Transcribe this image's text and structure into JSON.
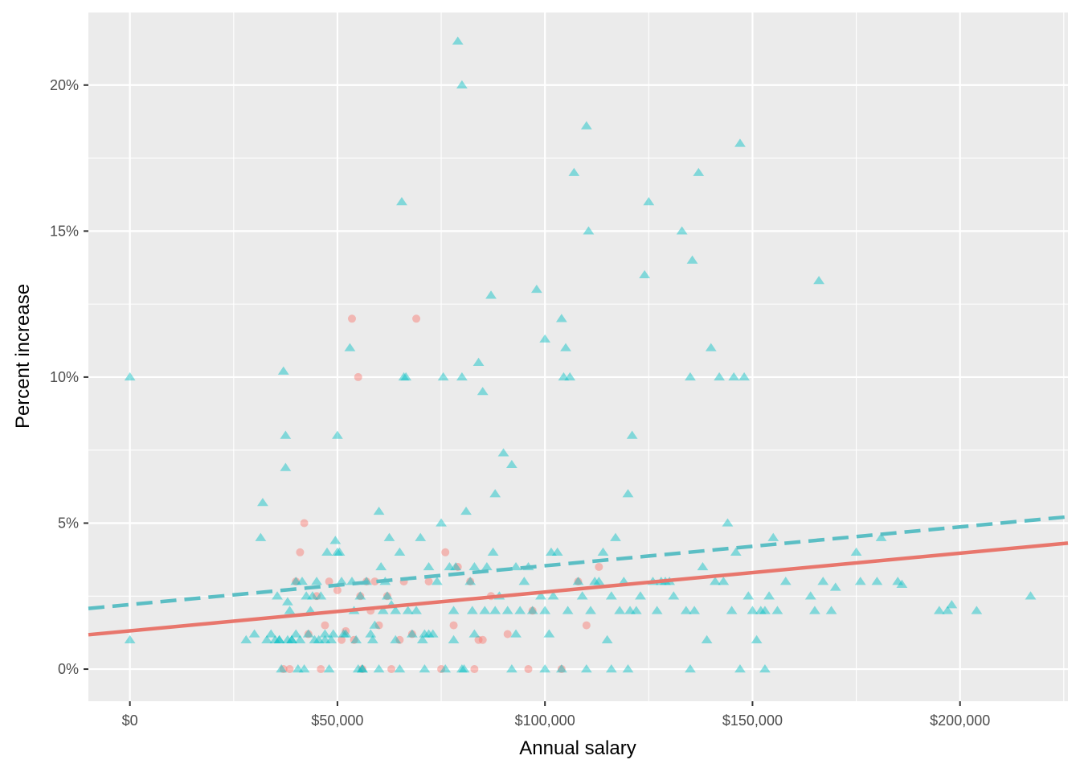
{
  "chart_data": {
    "type": "scatter",
    "title": "",
    "xlabel": "Annual salary",
    "ylabel": "Percent increase",
    "xlim": [
      -10000,
      226000
    ],
    "ylim": [
      -0.011,
      0.225
    ],
    "x_ticks": [
      0,
      50000,
      100000,
      150000,
      200000
    ],
    "x_tick_labels": [
      "$0",
      "$50,000",
      "$100,000",
      "$150,000",
      "$200,000"
    ],
    "y_ticks": [
      0,
      0.05,
      0.1,
      0.15,
      0.2
    ],
    "y_tick_labels": [
      "0%",
      "5%",
      "10%",
      "15%",
      "20%"
    ],
    "grid": true,
    "legend": "none",
    "background": "#ebebeb",
    "series": [
      {
        "marker": "circle",
        "color": "#F8766D",
        "points": [
          [
            37000,
            0
          ],
          [
            38500,
            0
          ],
          [
            40000,
            0.03
          ],
          [
            41000,
            0.04
          ],
          [
            42000,
            0.05
          ],
          [
            43000,
            0.012
          ],
          [
            45000,
            0.025
          ],
          [
            46000,
            0
          ],
          [
            47000,
            0.015
          ],
          [
            48000,
            0.03
          ],
          [
            50000,
            0.027
          ],
          [
            51000,
            0.01
          ],
          [
            52000,
            0.013
          ],
          [
            53500,
            0.12
          ],
          [
            54000,
            0.01
          ],
          [
            55000,
            0.1
          ],
          [
            55500,
            0.025
          ],
          [
            56000,
            0
          ],
          [
            57000,
            0.03
          ],
          [
            58000,
            0.02
          ],
          [
            59000,
            0.03
          ],
          [
            60000,
            0.015
          ],
          [
            62000,
            0.025
          ],
          [
            63000,
            0
          ],
          [
            65000,
            0.01
          ],
          [
            66000,
            0.03
          ],
          [
            68000,
            0.012
          ],
          [
            69000,
            0.12
          ],
          [
            72000,
            0.03
          ],
          [
            75000,
            0
          ],
          [
            76000,
            0.04
          ],
          [
            78000,
            0.015
          ],
          [
            79000,
            0.035
          ],
          [
            82000,
            0.03
          ],
          [
            83000,
            0
          ],
          [
            84000,
            0.01
          ],
          [
            85000,
            0.01
          ],
          [
            87000,
            0.025
          ],
          [
            91000,
            0.012
          ],
          [
            96000,
            0
          ],
          [
            97000,
            0.02
          ],
          [
            104000,
            0
          ],
          [
            108000,
            0.03
          ],
          [
            110000,
            0.015
          ],
          [
            113000,
            0.035
          ]
        ]
      },
      {
        "marker": "triangle",
        "color": "#00BFC4",
        "points": [
          [
            0,
            0.1
          ],
          [
            0,
            0.01
          ],
          [
            28000,
            0.01
          ],
          [
            30000,
            0.012
          ],
          [
            31500,
            0.045
          ],
          [
            32000,
            0.057
          ],
          [
            33000,
            0.01
          ],
          [
            34000,
            0.012
          ],
          [
            35000,
            0.01
          ],
          [
            35500,
            0.025
          ],
          [
            36000,
            0.01
          ],
          [
            36500,
            0
          ],
          [
            37000,
            0.102
          ],
          [
            37500,
            0.08
          ],
          [
            37500,
            0.069
          ],
          [
            38000,
            0.023
          ],
          [
            38500,
            0.02
          ],
          [
            39000,
            0.01
          ],
          [
            40000,
            0.03
          ],
          [
            40000,
            0.012
          ],
          [
            40500,
            0
          ],
          [
            41000,
            0.01
          ],
          [
            41500,
            0.03
          ],
          [
            42000,
            0
          ],
          [
            42500,
            0.025
          ],
          [
            43000,
            0.012
          ],
          [
            43500,
            0.02
          ],
          [
            44000,
            0.025
          ],
          [
            44500,
            0.01
          ],
          [
            45000,
            0.03
          ],
          [
            45500,
            0.01
          ],
          [
            46000,
            0.025
          ],
          [
            47000,
            0.012
          ],
          [
            47500,
            0.04
          ],
          [
            48000,
            0
          ],
          [
            48500,
            0.01
          ],
          [
            49000,
            0.012
          ],
          [
            49500,
            0.044
          ],
          [
            50000,
            0.04
          ],
          [
            50000,
            0.08
          ],
          [
            50500,
            0.04
          ],
          [
            51000,
            0.03
          ],
          [
            51500,
            0.012
          ],
          [
            52000,
            0.012
          ],
          [
            53000,
            0.11
          ],
          [
            53500,
            0.03
          ],
          [
            54000,
            0.02
          ],
          [
            54500,
            0.01
          ],
          [
            55000,
            0
          ],
          [
            55500,
            0.025
          ],
          [
            56000,
            0
          ],
          [
            57000,
            0.03
          ],
          [
            58000,
            0.012
          ],
          [
            58500,
            0.01
          ],
          [
            59000,
            0.015
          ],
          [
            60000,
            0.054
          ],
          [
            60500,
            0.035
          ],
          [
            61000,
            0.02
          ],
          [
            61500,
            0.03
          ],
          [
            62000,
            0.025
          ],
          [
            62500,
            0.045
          ],
          [
            63000,
            0.022
          ],
          [
            64000,
            0.01
          ],
          [
            65000,
            0.04
          ],
          [
            65500,
            0.16
          ],
          [
            66000,
            0.1
          ],
          [
            66500,
            0.1
          ],
          [
            67000,
            0.02
          ],
          [
            68000,
            0.012
          ],
          [
            69000,
            0.02
          ],
          [
            70000,
            0.045
          ],
          [
            70500,
            0.01
          ],
          [
            71000,
            0.012
          ],
          [
            72000,
            0.035
          ],
          [
            73000,
            0.012
          ],
          [
            74000,
            0.03
          ],
          [
            75000,
            0.05
          ],
          [
            75500,
            0.1
          ],
          [
            76000,
            0
          ],
          [
            77000,
            0.035
          ],
          [
            78000,
            0.01
          ],
          [
            78500,
            0.035
          ],
          [
            79000,
            0.215
          ],
          [
            80000,
            0.2
          ],
          [
            80000,
            0.1
          ],
          [
            80500,
            0
          ],
          [
            81000,
            0.054
          ],
          [
            82000,
            0.03
          ],
          [
            82500,
            0.02
          ],
          [
            83000,
            0.035
          ],
          [
            84000,
            0.105
          ],
          [
            85000,
            0.095
          ],
          [
            85500,
            0.02
          ],
          [
            86000,
            0.035
          ],
          [
            87000,
            0.128
          ],
          [
            87500,
            0.04
          ],
          [
            88000,
            0.06
          ],
          [
            89000,
            0.025
          ],
          [
            90000,
            0.074
          ],
          [
            91000,
            0.02
          ],
          [
            92000,
            0.07
          ],
          [
            93000,
            0.035
          ],
          [
            94000,
            0.02
          ],
          [
            95000,
            0.03
          ],
          [
            96000,
            0.035
          ],
          [
            97000,
            0.02
          ],
          [
            98000,
            0.13
          ],
          [
            99000,
            0.025
          ],
          [
            100000,
            0.02
          ],
          [
            100000,
            0.113
          ],
          [
            101000,
            0.012
          ],
          [
            101500,
            0.04
          ],
          [
            102000,
            0.025
          ],
          [
            103000,
            0.04
          ],
          [
            104000,
            0.12
          ],
          [
            104500,
            0.1
          ],
          [
            105000,
            0.11
          ],
          [
            105500,
            0.02
          ],
          [
            106000,
            0.1
          ],
          [
            107000,
            0.17
          ],
          [
            108000,
            0.03
          ],
          [
            109000,
            0.025
          ],
          [
            110000,
            0.186
          ],
          [
            110500,
            0.15
          ],
          [
            111000,
            0.02
          ],
          [
            112000,
            0.03
          ],
          [
            113000,
            0.03
          ],
          [
            114000,
            0.04
          ],
          [
            115000,
            0.01
          ],
          [
            116000,
            0.025
          ],
          [
            117000,
            0.045
          ],
          [
            118000,
            0.02
          ],
          [
            119000,
            0.03
          ],
          [
            120000,
            0.06
          ],
          [
            120500,
            0.02
          ],
          [
            121000,
            0.08
          ],
          [
            122000,
            0.02
          ],
          [
            123000,
            0.025
          ],
          [
            124000,
            0.135
          ],
          [
            125000,
            0.16
          ],
          [
            126000,
            0.03
          ],
          [
            127000,
            0.02
          ],
          [
            128000,
            0.03
          ],
          [
            129000,
            0.03
          ],
          [
            130000,
            0.03
          ],
          [
            131000,
            0.025
          ],
          [
            133000,
            0.15
          ],
          [
            134000,
            0.02
          ],
          [
            135000,
            0.1
          ],
          [
            135500,
            0.14
          ],
          [
            136000,
            0.02
          ],
          [
            137000,
            0.17
          ],
          [
            138000,
            0.035
          ],
          [
            139000,
            0.01
          ],
          [
            140000,
            0.11
          ],
          [
            141000,
            0.03
          ],
          [
            142000,
            0.1
          ],
          [
            143000,
            0.03
          ],
          [
            144000,
            0.05
          ],
          [
            145000,
            0.02
          ],
          [
            145500,
            0.1
          ],
          [
            146000,
            0.04
          ],
          [
            147000,
            0.18
          ],
          [
            148000,
            0.1
          ],
          [
            149000,
            0.025
          ],
          [
            150000,
            0.02
          ],
          [
            151000,
            0.01
          ],
          [
            152000,
            0.02
          ],
          [
            153000,
            0.02
          ],
          [
            154000,
            0.025
          ],
          [
            155000,
            0.045
          ],
          [
            156000,
            0.02
          ],
          [
            158000,
            0.03
          ],
          [
            164000,
            0.025
          ],
          [
            165000,
            0.02
          ],
          [
            166000,
            0.133
          ],
          [
            167000,
            0.03
          ],
          [
            169000,
            0.02
          ],
          [
            170000,
            0.028
          ],
          [
            175000,
            0.04
          ],
          [
            176000,
            0.03
          ],
          [
            180000,
            0.03
          ],
          [
            181000,
            0.045
          ],
          [
            185000,
            0.03
          ],
          [
            186000,
            0.029
          ],
          [
            195000,
            0.02
          ],
          [
            197000,
            0.02
          ],
          [
            198000,
            0.022
          ],
          [
            204000,
            0.02
          ],
          [
            217000,
            0.025
          ],
          [
            104000,
            0
          ],
          [
            110000,
            0
          ],
          [
            100000,
            0
          ],
          [
            80000,
            0
          ],
          [
            65000,
            0
          ],
          [
            135000,
            0
          ],
          [
            120000,
            0
          ],
          [
            147000,
            0
          ],
          [
            153000,
            0
          ],
          [
            116000,
            0
          ],
          [
            71000,
            0
          ],
          [
            60000,
            0
          ],
          [
            56000,
            0
          ],
          [
            92000,
            0
          ],
          [
            38000,
            0.01
          ],
          [
            47000,
            0.01
          ],
          [
            64000,
            0.02
          ],
          [
            72000,
            0.012
          ],
          [
            83000,
            0.012
          ],
          [
            93000,
            0.012
          ],
          [
            88000,
            0.02
          ],
          [
            78000,
            0.02
          ],
          [
            39000,
            0.01
          ],
          [
            36000,
            0.01
          ]
        ]
      }
    ],
    "trend_lines": [
      {
        "style": "solid",
        "color": "#E8766C",
        "intercept": 0.0131,
        "slope": 1.33e-07
      },
      {
        "style": "dashed",
        "color": "#5BBEC4",
        "intercept": 0.0221,
        "slope": 1.33e-07
      }
    ]
  }
}
